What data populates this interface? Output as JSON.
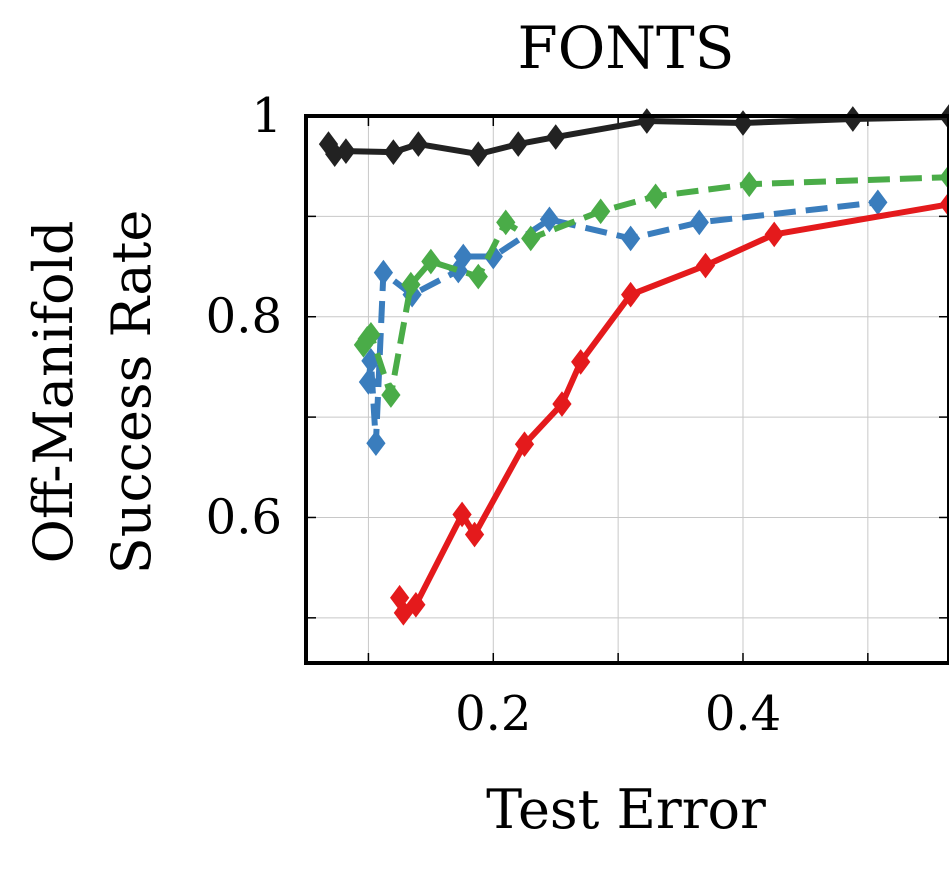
{
  "chart_data": {
    "type": "line",
    "title": "FONTS",
    "xlabel": "Test Error",
    "ylabel": [
      "Off-Manifold",
      "Success Rate"
    ],
    "xlim": [
      0.05,
      0.565
    ],
    "ylim": [
      0.455,
      1.0
    ],
    "xticks": [
      0.1,
      0.2,
      0.3,
      0.4,
      0.5
    ],
    "xtick_labels": [
      "",
      "0.2",
      "",
      "0.4",
      ""
    ],
    "yticks": [
      0.5,
      0.6,
      0.7,
      0.8,
      0.9,
      1.0
    ],
    "ytick_labels": [
      "",
      "0.6",
      "",
      "0.8",
      "",
      "1"
    ],
    "grid": true,
    "series": [
      {
        "color": "#222222",
        "dash": "solid",
        "x": [
          0.068,
          0.073,
          0.082,
          0.12,
          0.14,
          0.188,
          0.22,
          0.25,
          0.323,
          0.4,
          0.488,
          0.565
        ],
        "y": [
          0.972,
          0.962,
          0.965,
          0.964,
          0.972,
          0.962,
          0.972,
          0.979,
          0.995,
          0.993,
          0.997,
          0.999
        ]
      },
      {
        "color": "#3a7dbd",
        "dash": "dashed",
        "x": [
          0.1,
          0.102,
          0.106,
          0.112,
          0.135,
          0.172,
          0.176,
          0.2,
          0.245,
          0.31,
          0.365,
          0.508
        ],
        "y": [
          0.735,
          0.756,
          0.674,
          0.844,
          0.822,
          0.846,
          0.86,
          0.86,
          0.897,
          0.878,
          0.894,
          0.914
        ]
      },
      {
        "color": "#4aac48",
        "dash": "dashed",
        "x": [
          0.096,
          0.099,
          0.102,
          0.118,
          0.134,
          0.15,
          0.188,
          0.21,
          0.23,
          0.286,
          0.33,
          0.405,
          0.565
        ],
        "y": [
          0.772,
          0.778,
          0.782,
          0.722,
          0.832,
          0.855,
          0.84,
          0.894,
          0.878,
          0.905,
          0.92,
          0.932,
          0.939
        ]
      },
      {
        "color": "#e41a1c",
        "dash": "solid",
        "x": [
          0.125,
          0.128,
          0.138,
          0.175,
          0.185,
          0.225,
          0.255,
          0.27,
          0.31,
          0.37,
          0.425,
          0.565
        ],
        "y": [
          0.52,
          0.505,
          0.513,
          0.603,
          0.583,
          0.673,
          0.713,
          0.755,
          0.822,
          0.851,
          0.882,
          0.912
        ]
      }
    ]
  }
}
